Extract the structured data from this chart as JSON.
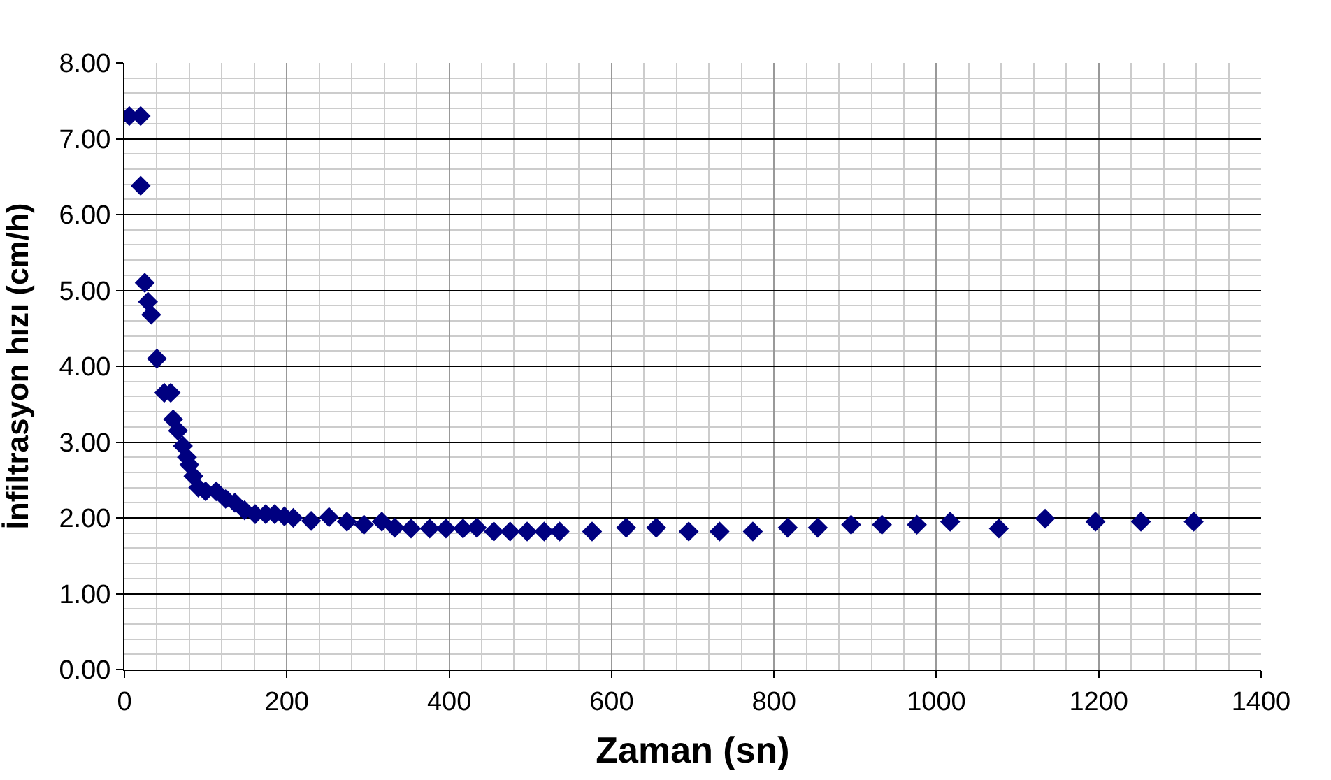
{
  "chart_data": {
    "type": "scatter",
    "xlabel": "Zaman (sn)",
    "ylabel": "İnfiltrasyon hızı (cm/h)",
    "x": [
      6,
      20,
      20,
      25,
      29,
      33,
      40,
      49,
      57,
      60,
      66,
      72,
      77,
      80,
      85,
      91,
      100,
      113,
      125,
      136,
      148,
      161,
      174,
      185,
      197,
      208,
      230,
      252,
      274,
      295,
      317,
      333,
      353,
      376,
      396,
      417,
      434,
      455,
      475,
      496,
      517,
      536,
      576,
      618,
      655,
      695,
      733,
      774,
      817,
      854,
      895,
      933,
      976,
      1017,
      1077,
      1134,
      1196,
      1252,
      1317
    ],
    "series": [
      {
        "color": "#000080",
        "values": [
          7.3,
          7.3,
          6.38,
          5.1,
          4.85,
          4.68,
          4.1,
          3.65,
          3.65,
          3.3,
          3.15,
          2.95,
          2.8,
          2.7,
          2.55,
          2.4,
          2.35,
          2.35,
          2.25,
          2.2,
          2.1,
          2.05,
          2.05,
          2.05,
          2.02,
          2.0,
          1.96,
          2.01,
          1.95,
          1.91,
          1.95,
          1.87,
          1.86,
          1.86,
          1.86,
          1.86,
          1.87,
          1.82,
          1.82,
          1.82,
          1.82,
          1.82,
          1.82,
          1.87,
          1.87,
          1.82,
          1.82,
          1.82,
          1.87,
          1.87,
          1.91,
          1.91,
          1.91,
          1.95,
          1.86,
          1.99,
          1.95,
          1.95,
          1.95
        ]
      }
    ],
    "xlim": [
      0,
      1400
    ],
    "xticks": [
      0,
      200,
      400,
      600,
      800,
      1000,
      1200,
      1400
    ],
    "ylim": [
      0,
      8
    ],
    "yticks": [
      {
        "value": 0,
        "label": "0.00"
      },
      {
        "value": 1,
        "label": "1.00"
      },
      {
        "value": 2,
        "label": "2.00"
      },
      {
        "value": 3,
        "label": "3.00"
      },
      {
        "value": 4,
        "label": "4.00"
      },
      {
        "value": 5,
        "label": "5.00"
      },
      {
        "value": 6,
        "label": "6.00"
      },
      {
        "value": 7,
        "label": "7.00"
      },
      {
        "value": 8,
        "label": "8.00"
      }
    ],
    "grid": true,
    "marker": "diamond",
    "legend": false
  }
}
